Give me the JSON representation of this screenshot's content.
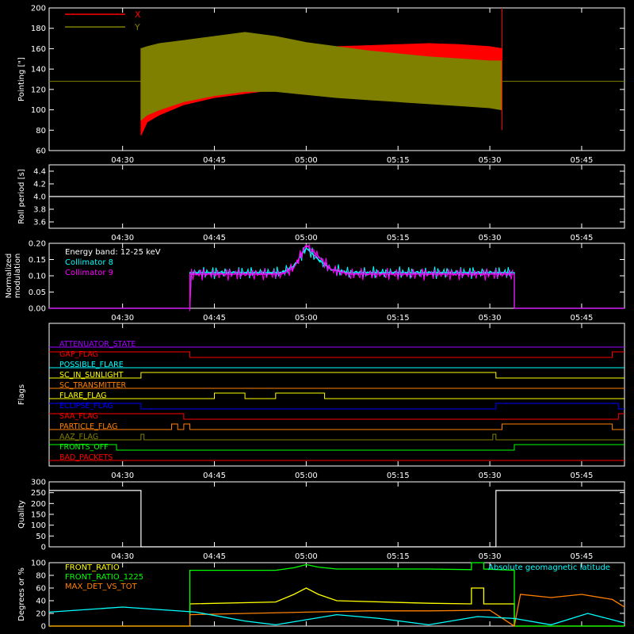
{
  "xaxis": {
    "tick_labels": [
      "04:30",
      "04:45",
      "05:00",
      "05:15",
      "05:30",
      "05:45"
    ],
    "tick_minutes": [
      30,
      45,
      60,
      75,
      90,
      105
    ],
    "range_minutes": [
      18,
      112
    ]
  },
  "colors": {
    "red": "#ff0000",
    "olive": "#808000",
    "white": "#ffffff",
    "cyan": "#00ffff",
    "magenta": "#ff00ff",
    "orange": "#ff8000",
    "yellow": "#ffff00",
    "blue": "#0000ff",
    "green": "#00ff00",
    "purple": "#a000ff",
    "brown": "#c04020"
  },
  "chart_data": [
    {
      "type": "area",
      "ylabel": "Pointing [\"]",
      "ylim": [
        60,
        200
      ],
      "ytick_labels": [
        "60",
        "80",
        "100",
        "120",
        "140",
        "160",
        "180",
        "200"
      ],
      "series": [
        {
          "name": "X",
          "color": "#ff0000",
          "x_minutes": [
            33,
            34,
            36,
            40,
            45,
            50,
            55,
            60,
            65,
            70,
            75,
            80,
            85,
            90,
            92
          ],
          "upper": [
            160,
            155,
            150,
            152,
            155,
            157,
            158,
            160,
            162,
            163,
            164,
            165,
            164,
            162,
            160
          ],
          "lower": [
            75,
            88,
            95,
            105,
            112,
            116,
            120,
            121,
            121,
            121,
            121,
            120,
            118,
            113,
            110
          ]
        },
        {
          "name": "Y",
          "color": "#808000",
          "x_minutes": [
            33,
            34,
            36,
            40,
            45,
            50,
            55,
            60,
            65,
            70,
            75,
            80,
            85,
            90,
            92
          ],
          "upper": [
            160,
            162,
            165,
            168,
            172,
            176,
            172,
            166,
            162,
            158,
            155,
            152,
            150,
            148,
            148
          ],
          "lower": [
            90,
            95,
            100,
            108,
            114,
            118,
            118,
            115,
            112,
            110,
            108,
            106,
            104,
            102,
            100
          ],
          "baseline": 128
        }
      ]
    },
    {
      "type": "line",
      "ylabel": "Roll period [s]",
      "ylim": [
        3.5,
        4.5
      ],
      "ytick_labels": [
        "3.6",
        "3.8",
        "4.0",
        "4.2",
        "4.4"
      ],
      "series": [
        {
          "name": "",
          "color": "#ffffff",
          "x_minutes": [
            18,
            112
          ],
          "y": [
            4.0,
            4.0
          ]
        }
      ]
    },
    {
      "type": "line",
      "ylabel": "Normalized modulation",
      "ylim": [
        0.0,
        0.2
      ],
      "ytick_labels": [
        "0.00",
        "0.05",
        "0.10",
        "0.15",
        "0.20"
      ],
      "annotation": "Energy band: 12-25 keV",
      "series": [
        {
          "name": "Collimator 8",
          "color": "#00ffff",
          "x_minutes": [
            18,
            41,
            41,
            56,
            58,
            60,
            62,
            64,
            67,
            80,
            94,
            94,
            112
          ],
          "y": [
            0,
            0,
            0.11,
            0.11,
            0.13,
            0.185,
            0.15,
            0.12,
            0.11,
            0.11,
            0.11,
            0,
            0
          ]
        },
        {
          "name": "Collimator 9",
          "color": "#ff00ff",
          "x_minutes": [
            18,
            41,
            41,
            56,
            58,
            60,
            62,
            64,
            67,
            80,
            94,
            94,
            112
          ],
          "y": [
            0,
            0,
            0.105,
            0.105,
            0.125,
            0.195,
            0.16,
            0.12,
            0.105,
            0.105,
            0.105,
            0,
            0
          ]
        }
      ]
    },
    {
      "type": "line",
      "ylabel": "Flags",
      "series": [
        {
          "name": "ATTENUATOR_STATE",
          "color": "#a000ff",
          "x_minutes": [
            18,
            112
          ],
          "y": [
            0,
            0
          ]
        },
        {
          "name": "GAP_FLAG",
          "color": "#ff0000",
          "x_minutes": [
            18,
            41,
            41,
            110,
            110,
            112
          ],
          "y": [
            1,
            1,
            0,
            0,
            1,
            1
          ]
        },
        {
          "name": "POSSIBLE_FLARE",
          "color": "#00ffff",
          "x_minutes": [
            18,
            112
          ],
          "y": [
            0,
            0
          ]
        },
        {
          "name": "SC_IN_SUNLIGHT",
          "color": "#ffff00",
          "x_minutes": [
            18,
            33,
            33,
            91,
            91,
            112
          ],
          "y": [
            0,
            0,
            1,
            1,
            0,
            0
          ]
        },
        {
          "name": "SC_TRANSMITTER",
          "color": "#ff8000",
          "x_minutes": [
            18,
            112
          ],
          "y": [
            0,
            0
          ]
        },
        {
          "name": "FLARE_FLAG",
          "color": "#ffff00",
          "x_minutes": [
            18,
            45,
            45,
            50,
            50,
            55,
            55,
            63,
            63,
            112
          ],
          "y": [
            0,
            0,
            1,
            1,
            0,
            0,
            1,
            1,
            0,
            0
          ]
        },
        {
          "name": "ECLIPSE_FLAG",
          "color": "#0000ff",
          "x_minutes": [
            18,
            33,
            33,
            91,
            91,
            111,
            111,
            112
          ],
          "y": [
            1,
            1,
            0,
            0,
            1,
            1,
            0,
            0
          ]
        },
        {
          "name": "SAA_FLAG",
          "color": "#ff0000",
          "x_minutes": [
            18,
            40,
            40,
            111,
            111,
            112
          ],
          "y": [
            1,
            1,
            0,
            0,
            1,
            1
          ]
        },
        {
          "name": "PARTICLE_FLAG",
          "color": "#ff8000",
          "x_minutes": [
            18,
            38,
            38,
            39,
            39,
            40,
            40,
            41,
            41,
            92,
            92,
            110,
            110,
            112
          ],
          "y": [
            0,
            0,
            1,
            1,
            0,
            0,
            1,
            1,
            0,
            0,
            1,
            1,
            0,
            0
          ]
        },
        {
          "name": "AAZ_FLAG",
          "color": "#808000",
          "x_minutes": [
            18,
            33,
            33,
            33.5,
            33.5,
            90.5,
            90.5,
            91,
            91,
            112
          ],
          "y": [
            0,
            0,
            1,
            1,
            0,
            0,
            1,
            1,
            0,
            0
          ]
        },
        {
          "name": "FRONTS_OFF",
          "color": "#00ff00",
          "x_minutes": [
            18,
            29,
            29,
            94,
            94,
            112
          ],
          "y": [
            1,
            1,
            0,
            0,
            1,
            1
          ]
        },
        {
          "name": "BAD_PACKETS",
          "color": "#ff0000",
          "x_minutes": [
            18,
            112
          ],
          "y": [
            0,
            0
          ]
        }
      ]
    },
    {
      "type": "line",
      "ylabel": "Quality",
      "ylim": [
        0,
        300
      ],
      "ytick_labels": [
        "0",
        "50",
        "100",
        "150",
        "200",
        "250",
        "300"
      ],
      "series": [
        {
          "name": "",
          "color": "#ffffff",
          "x_minutes": [
            18,
            33,
            33,
            91,
            91,
            112
          ],
          "y": [
            260,
            260,
            0,
            0,
            260,
            260
          ]
        }
      ]
    },
    {
      "type": "line",
      "ylabel": "Degrees or %",
      "ylim": [
        0,
        100
      ],
      "ytick_labels": [
        "0",
        "20",
        "40",
        "60",
        "80",
        "100"
      ],
      "annotation": "Absolute geomagnetic latitude",
      "series": [
        {
          "name": "FRONT_RATIO",
          "color": "#ffff00",
          "x_minutes": [
            18,
            41,
            41,
            55,
            58,
            60,
            62,
            65,
            80,
            87,
            87,
            89,
            89,
            94,
            94,
            112
          ],
          "y": [
            0,
            0,
            35,
            38,
            50,
            60,
            50,
            40,
            36,
            35,
            60,
            60,
            35,
            35,
            0,
            0
          ]
        },
        {
          "name": "FRONT_RATIO_1225",
          "color": "#00ff00",
          "x_minutes": [
            18,
            41,
            41,
            55,
            58,
            60,
            62,
            65,
            80,
            87,
            87,
            89,
            89,
            94,
            94,
            112
          ],
          "y": [
            0,
            0,
            88,
            88,
            92,
            97,
            93,
            90,
            90,
            89,
            100,
            100,
            90,
            88,
            0,
            0
          ]
        },
        {
          "name": "MAX_DET_VS_TOT",
          "color": "#ff8000",
          "x_minutes": [
            18,
            41,
            41,
            60,
            70,
            80,
            90,
            94,
            95,
            100,
            105,
            110,
            112
          ],
          "y": [
            0,
            0,
            18,
            22,
            24,
            24,
            25,
            0,
            50,
            45,
            50,
            42,
            30
          ]
        },
        {
          "name": "Absolute geomagnetic latitude",
          "color": "#00ffff",
          "x_minutes": [
            18,
            30,
            42,
            50,
            55,
            65,
            72,
            80,
            88,
            94,
            100,
            106,
            112
          ],
          "y": [
            22,
            30,
            22,
            8,
            2,
            18,
            12,
            2,
            15,
            12,
            2,
            20,
            5
          ]
        }
      ]
    }
  ]
}
